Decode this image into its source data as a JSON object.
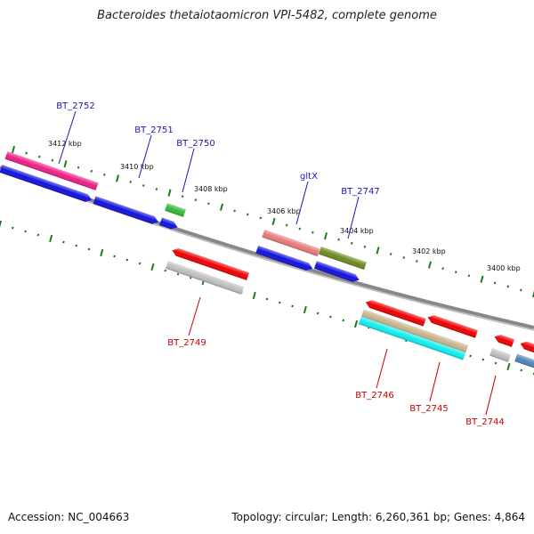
{
  "title": "Bacteroides thetaiotaomicron VPI-5482, complete genome",
  "footer": {
    "accession": "Accession: NC_004663",
    "topology": "Topology: circular; Length: 6,260,361 bp; Genes: 4,864"
  },
  "ticks": [
    "3412 kbp",
    "3410 kbp",
    "3408 kbp",
    "3406 kbp",
    "3404 kbp",
    "3402 kbp",
    "3400 kbp"
  ],
  "labels": {
    "top": [
      "BT_2752",
      "BT_2751",
      "BT_2750",
      "gltX",
      "BT_2747"
    ],
    "bottom": [
      "BT_2749",
      "BT_2746",
      "BT_2745",
      "BT_2744"
    ]
  },
  "colors": {
    "top_label": "#1a1ab0",
    "bottom_label": "#c80000",
    "tick": "#1f7a1f",
    "backbone": "#808080",
    "blue": "#1111dd",
    "red": "#ee0000",
    "pink": "#ee1f86",
    "green": "#33bb33",
    "olive": "#6f8a1e",
    "salmon": "#e87a7a",
    "grey": "#bfbfbf",
    "cyan": "#11eeee",
    "tan": "#c9b48a",
    "steel": "#4f86b8"
  }
}
